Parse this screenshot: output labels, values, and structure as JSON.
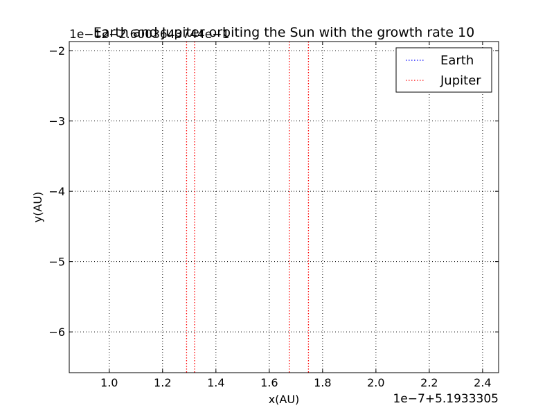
{
  "chart_data": {
    "type": "line",
    "title": "Earth and Jupiter orbiting the Sun with the growth rate 10",
    "xlabel": "x(AU)",
    "ylabel": "y(AU)",
    "x_offset_label": "1e−7+5.1933305",
    "y_offset_label": "1e−12−2.6003643744e−1",
    "xlim": [
      0.85,
      2.46
    ],
    "ylim": [
      -6.58,
      -1.87
    ],
    "xticks": [
      1.0,
      1.2,
      1.4,
      1.6,
      1.8,
      2.0,
      2.2,
      2.4
    ],
    "xtick_labels": [
      "1.0",
      "1.2",
      "1.4",
      "1.6",
      "1.8",
      "2.0",
      "2.2",
      "2.4"
    ],
    "yticks": [
      -2,
      -3,
      -4,
      -5,
      -6
    ],
    "ytick_labels": [
      "−2",
      "−3",
      "−4",
      "−5",
      "−6"
    ],
    "grid": true,
    "legend_position": "top-right",
    "series": [
      {
        "name": "Earth",
        "color": "#0000ff",
        "linestyle": "dotted",
        "vertical_segments": []
      },
      {
        "name": "Jupiter",
        "color": "#ff0000",
        "linestyle": "dotted",
        "vertical_segments": [
          1.29,
          1.32,
          1.675,
          1.747
        ]
      }
    ]
  }
}
